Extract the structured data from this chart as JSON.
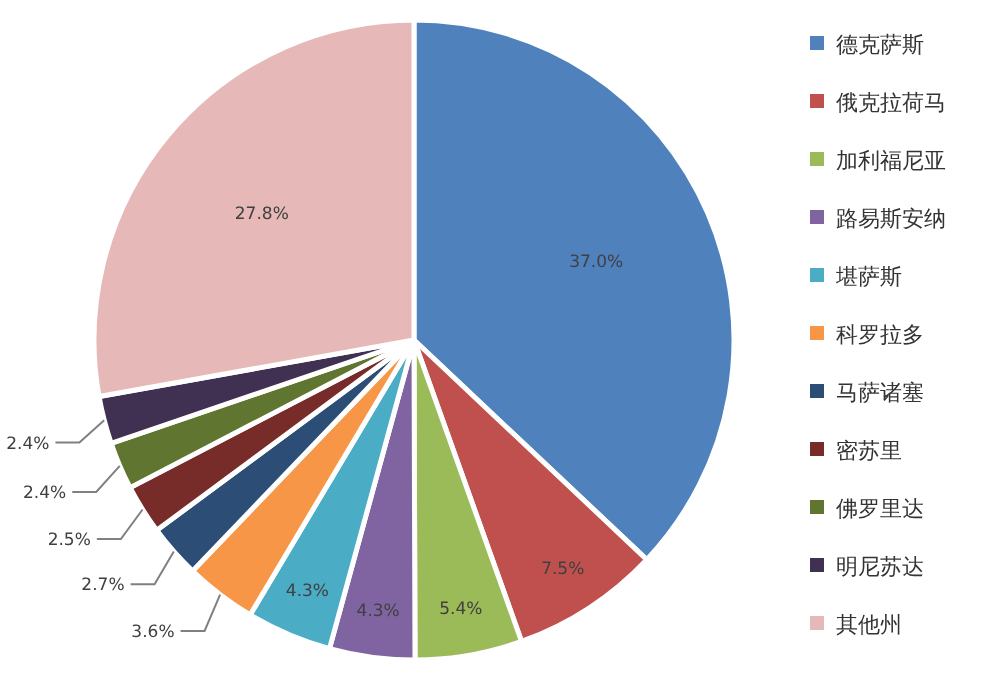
{
  "chart_data": {
    "type": "pie",
    "legend": "right",
    "categories": [
      "德克萨斯",
      "俄克拉荷马",
      "加利福尼亚",
      "路易斯安纳",
      "堪萨斯",
      "科罗拉多",
      "马萨诸塞",
      "密苏里",
      "佛罗里达",
      "明尼苏达",
      "其他州"
    ],
    "values": [
      37.0,
      7.5,
      5.4,
      4.3,
      4.3,
      3.6,
      2.7,
      2.5,
      2.4,
      2.4,
      27.8
    ],
    "colors": [
      "#4f81bd",
      "#c0504d",
      "#9bbb59",
      "#8064a2",
      "#4bacc6",
      "#f79646",
      "#2c4d75",
      "#772c2a",
      "#5f7530",
      "#403152",
      "#e6b9b8"
    ],
    "value_labels": [
      "37.0%",
      "7.5%",
      "5.4%",
      "4.3%",
      "4.3%",
      "3.6%",
      "2.7%",
      "2.5%",
      "2.4%",
      "2.4%",
      "27.8%"
    ]
  }
}
